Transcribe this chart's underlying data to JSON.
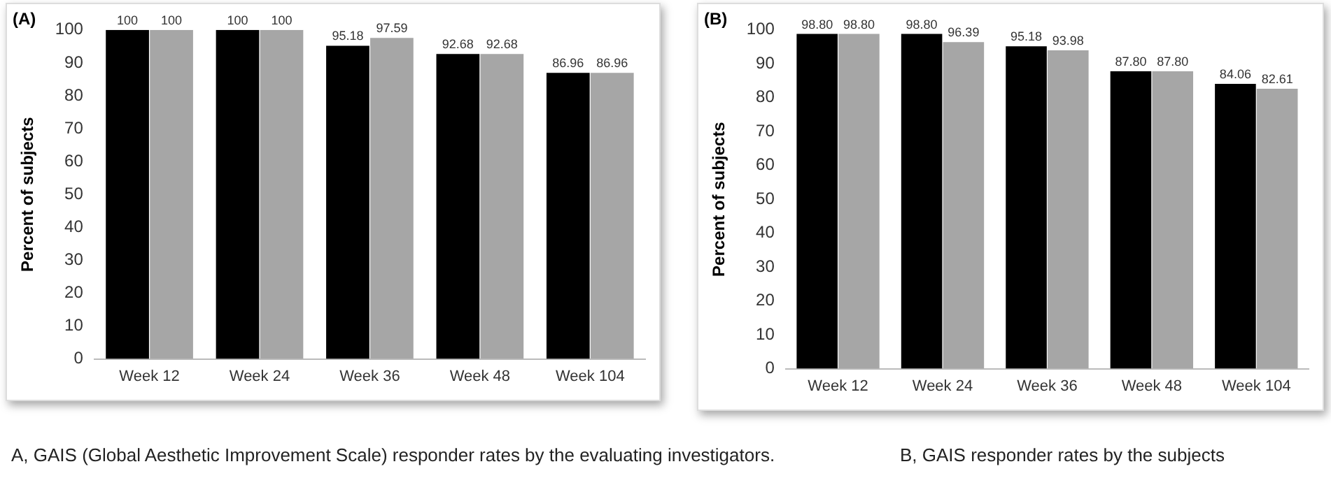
{
  "chart_data": [
    {
      "type": "bar",
      "title": "(A)",
      "ylabel": "Percent of subjects",
      "categories": [
        "Week 12",
        "Week 24",
        "Week 36",
        "Week 48",
        "Week 104"
      ],
      "ylim": [
        0,
        100
      ],
      "yticks": [
        0,
        10,
        20,
        30,
        40,
        50,
        60,
        70,
        80,
        90,
        100
      ],
      "grid": false,
      "legend": false,
      "series": [
        {
          "color": "#000000",
          "values": [
            100,
            100,
            95.18,
            92.68,
            86.96
          ],
          "value_labels": [
            "100",
            "100",
            "95.18",
            "92.68",
            "86.96"
          ]
        },
        {
          "color": "#a6a6a6",
          "values": [
            100,
            100,
            97.59,
            92.68,
            86.96
          ],
          "value_labels": [
            "100",
            "100",
            "97.59",
            "92.68",
            "86.96"
          ]
        }
      ],
      "annotations": [
        "A, GAIS (Global Aesthetic Improvement Scale) responder rates by the evaluating investigators."
      ]
    },
    {
      "type": "bar",
      "title": "(B)",
      "ylabel": "Percent of subjects",
      "categories": [
        "Week 12",
        "Week 24",
        "Week 36",
        "Week 48",
        "Week 104"
      ],
      "ylim": [
        0,
        100
      ],
      "yticks": [
        0,
        10,
        20,
        30,
        40,
        50,
        60,
        70,
        80,
        90,
        100
      ],
      "grid": false,
      "legend": false,
      "series": [
        {
          "color": "#000000",
          "values": [
            98.8,
            98.8,
            95.18,
            87.8,
            84.06
          ],
          "value_labels": [
            "98.80",
            "98.80",
            "95.18",
            "87.80",
            "84.06"
          ]
        },
        {
          "color": "#a6a6a6",
          "values": [
            98.8,
            96.39,
            93.98,
            87.8,
            82.61
          ],
          "value_labels": [
            "98.80",
            "96.39",
            "93.98",
            "87.80",
            "82.61"
          ]
        }
      ],
      "annotations": [
        "B, GAIS responder rates by the subjects"
      ]
    }
  ]
}
